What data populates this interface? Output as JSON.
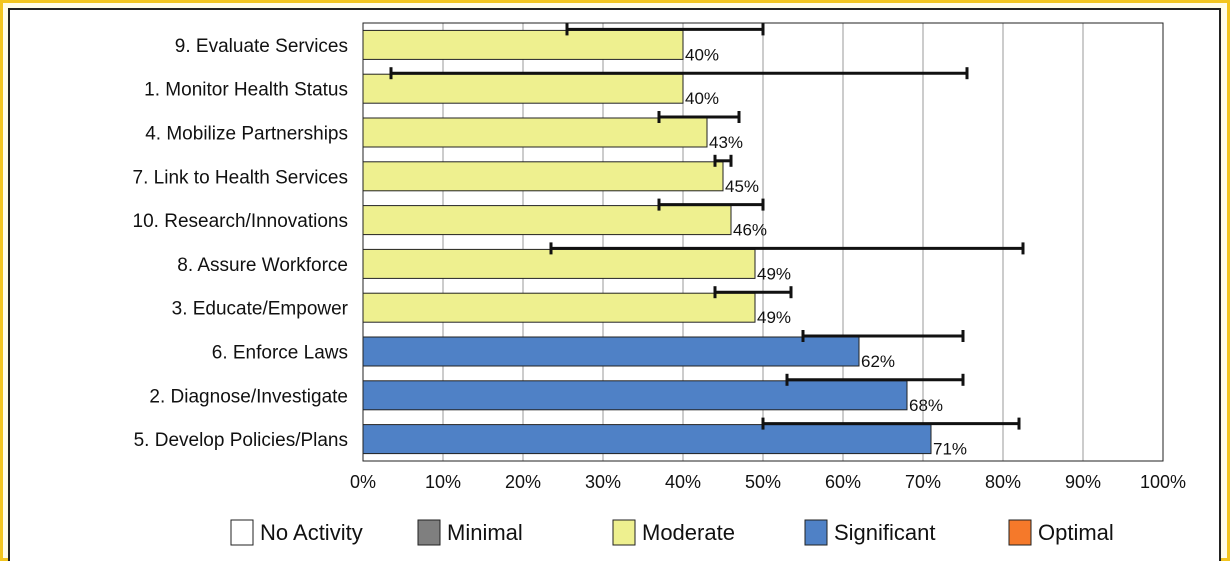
{
  "chart_data": {
    "type": "bar",
    "orientation": "horizontal",
    "categories": [
      "9.  Evaluate Services",
      "1.  Monitor Health Status",
      "4.  Mobilize Partnerships",
      "7.  Link to Health Services",
      "10.  Research/Innovations",
      "8.  Assure Workforce",
      "3.  Educate/Empower",
      "6.  Enforce Laws",
      "2.  Diagnose/Investigate",
      "5.  Develop Policies/Plans"
    ],
    "values": [
      40,
      40,
      43,
      45,
      46,
      49,
      49,
      62,
      68,
      71
    ],
    "value_labels": [
      "40%",
      "40%",
      "43%",
      "45%",
      "46%",
      "49%",
      "49%",
      "62%",
      "68%",
      "71%"
    ],
    "error_low": [
      25.5,
      3.5,
      37,
      44,
      37,
      23.5,
      44,
      55,
      53,
      50
    ],
    "error_high": [
      50,
      75.5,
      47,
      46,
      50,
      82.5,
      53.5,
      75,
      75,
      82
    ],
    "bar_levels": [
      "Moderate",
      "Moderate",
      "Moderate",
      "Moderate",
      "Moderate",
      "Moderate",
      "Moderate",
      "Significant",
      "Significant",
      "Significant"
    ],
    "xlim": [
      0,
      100
    ],
    "x_ticks": [
      "0%",
      "10%",
      "20%",
      "30%",
      "40%",
      "50%",
      "60%",
      "70%",
      "80%",
      "90%",
      "100%"
    ],
    "grid": "vertical",
    "legend_position": "bottom",
    "legend": [
      {
        "label": "No Activity",
        "color": "#ffffff"
      },
      {
        "label": "Minimal",
        "color": "#7f7f7f"
      },
      {
        "label": "Moderate",
        "color": "#eef08f"
      },
      {
        "label": "Significant",
        "color": "#4f81c6"
      },
      {
        "label": "Optimal",
        "color": "#f5792a"
      }
    ],
    "colors": {
      "Moderate": "#eef08f",
      "Significant": "#4f81c6",
      "border": "#222222",
      "grid": "#999999",
      "frame": "#f2c51f",
      "background": "#fffde8"
    }
  }
}
